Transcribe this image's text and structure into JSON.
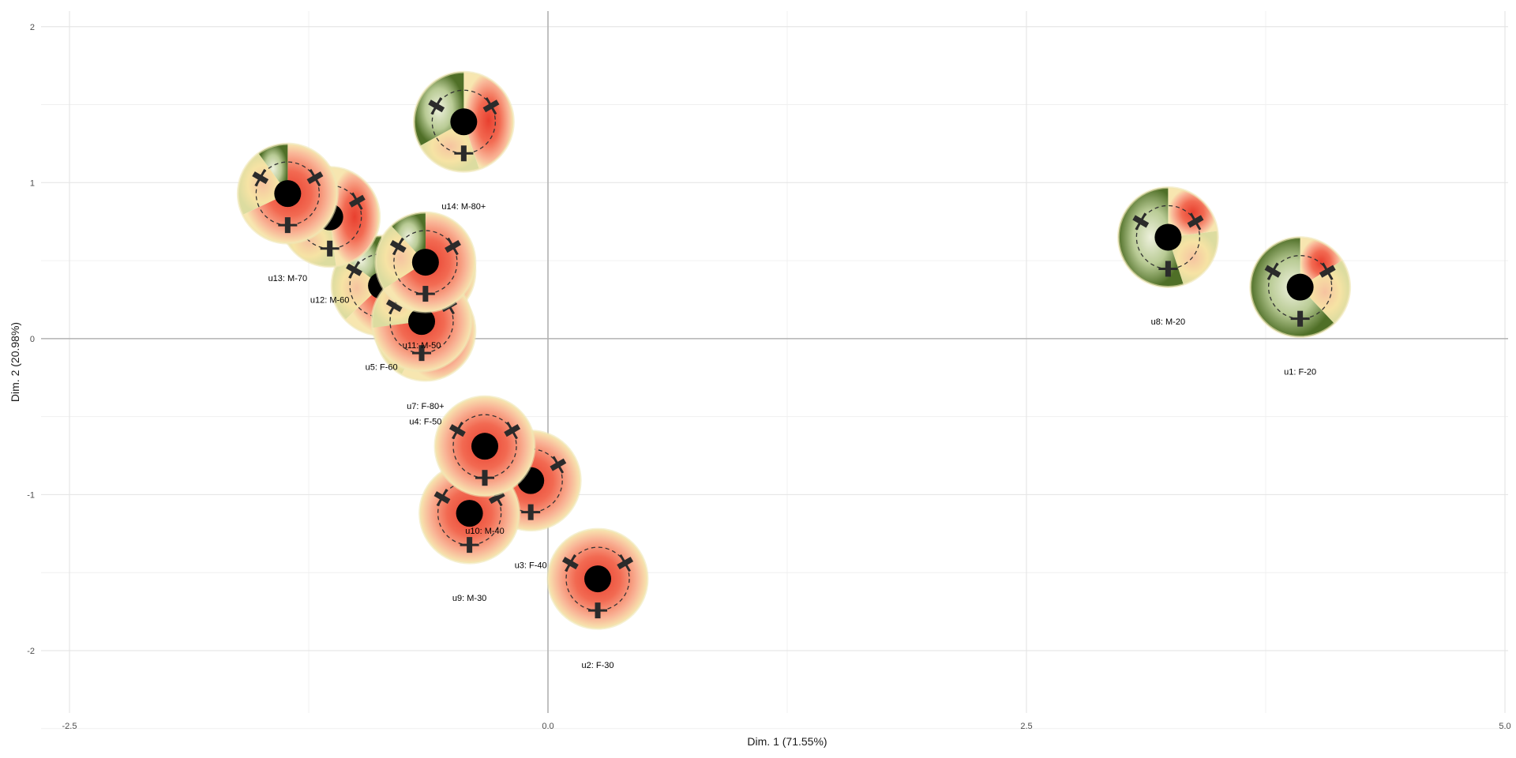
{
  "chart_data": {
    "type": "scatter",
    "title": "",
    "xlabel": "Dim. 1 (71.55%)",
    "ylabel": "Dim. 2 (20.98%)",
    "xlim": [
      -2.5,
      5.0
    ],
    "ylim": [
      -2.4,
      2.1
    ],
    "x_ticks": [
      -2.5,
      0.0,
      2.5,
      5.0
    ],
    "x_tick_labels": [
      "-2.5",
      "0.0",
      "2.5",
      "5.0"
    ],
    "y_ticks": [
      -2,
      -1,
      0,
      1,
      2
    ],
    "y_tick_labels": [
      "-2",
      "-1",
      "0",
      "1",
      "2"
    ],
    "grid": true,
    "reference_lines": {
      "x": 0,
      "y": 0
    },
    "marker": "donut glyph (green / yellow / red wedges with dashed ring and black centre)",
    "colors": {
      "green_dark": "#5e7d32",
      "green_light": "#c3d3a6",
      "yellow": "#f6e3a4",
      "red": "#f26a52",
      "red_light": "#f9b496",
      "center": "#000000"
    },
    "points": [
      {
        "label": "u1: F-20",
        "x": 3.93,
        "y": 0.33,
        "label_y": -0.21,
        "green_share": 0.62
      },
      {
        "label": "u2: F-30",
        "x": 0.26,
        "y": -1.54,
        "label_y": -2.09,
        "green_share": 0.0
      },
      {
        "label": "u3: F-40",
        "x": -0.09,
        "y": -0.91,
        "label_y": -1.45,
        "green_share": 0.0
      },
      {
        "label": "u4: F-50",
        "x": -0.64,
        "y": 0.43,
        "label_y": -0.53,
        "green_share": 0.18
      },
      {
        "label": "u5: F-60",
        "x": -0.87,
        "y": 0.34,
        "label_y": -0.18,
        "green_share": 0.15
      },
      {
        "label": "u7: F-80+",
        "x": -0.64,
        "y": 0.05,
        "label_y": -0.43,
        "green_share": 0.2
      },
      {
        "label": "u8: M-20",
        "x": 3.24,
        "y": 0.65,
        "label_y": 0.11,
        "green_share": 0.55
      },
      {
        "label": "u9: M-30",
        "x": -0.41,
        "y": -1.12,
        "label_y": -1.66,
        "green_share": 0.0
      },
      {
        "label": "u10: M-40",
        "x": -0.33,
        "y": -0.69,
        "label_y": -1.23,
        "green_share": 0.0
      },
      {
        "label": "u11: M-50",
        "x": -0.66,
        "y": 0.11,
        "label_y": -0.04,
        "green_share": 0.05
      },
      {
        "label": "u12: M-60",
        "x": -1.14,
        "y": 0.78,
        "label_y": 0.25,
        "green_share": 0.3
      },
      {
        "label": "u13: M-70",
        "x": -1.36,
        "y": 0.93,
        "label_y": 0.39,
        "green_share": 0.1
      },
      {
        "label": "u14: M-80+",
        "x": -0.44,
        "y": 1.39,
        "label_y": 0.85,
        "green_share": 0.33
      },
      {
        "label": "",
        "x": -0.64,
        "y": 0.49,
        "label_y": null,
        "green_share": 0.12
      }
    ]
  }
}
